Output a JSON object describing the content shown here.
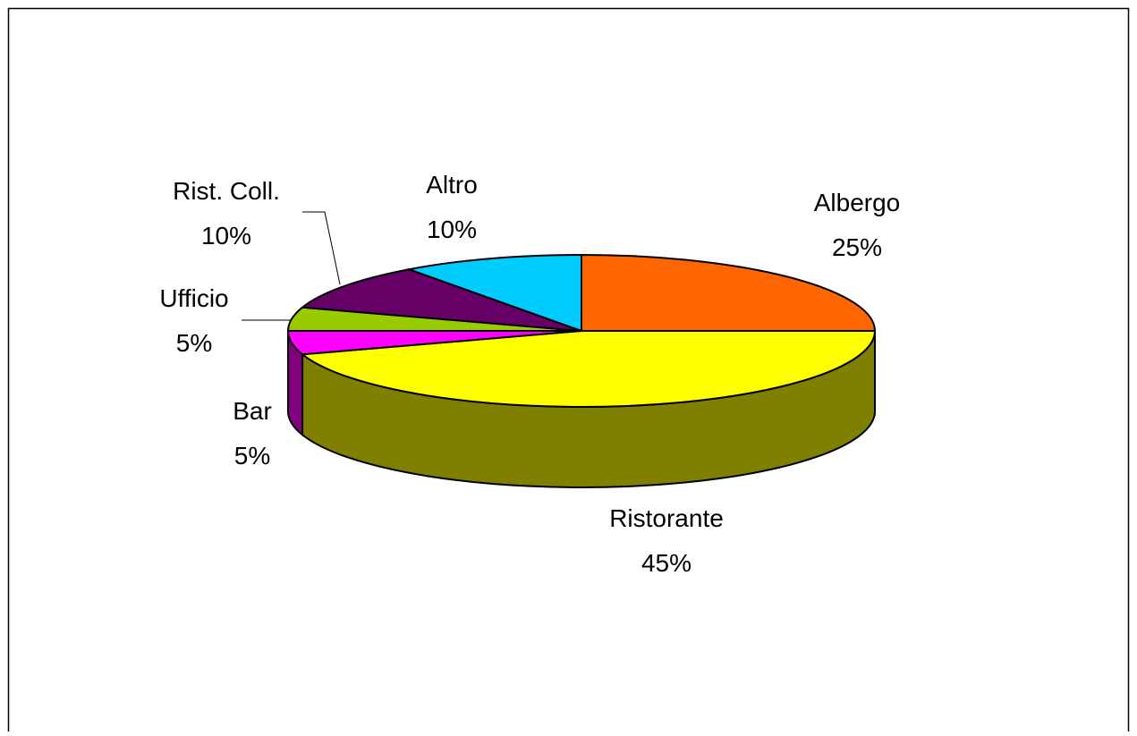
{
  "chart_data": {
    "type": "pie3d",
    "categories": [
      "Albergo",
      "Ristorante",
      "Bar",
      "Ufficio",
      "Rist. Coll.",
      "Altro"
    ],
    "values": [
      25,
      45,
      5,
      5,
      10,
      10
    ],
    "value_labels": [
      "25%",
      "45%",
      "5%",
      "5%",
      "10%",
      "10%"
    ],
    "colors": [
      "#ff6600",
      "#ffff00",
      "#ff00ff",
      "#99cc00",
      "#660066",
      "#00ccff"
    ]
  }
}
